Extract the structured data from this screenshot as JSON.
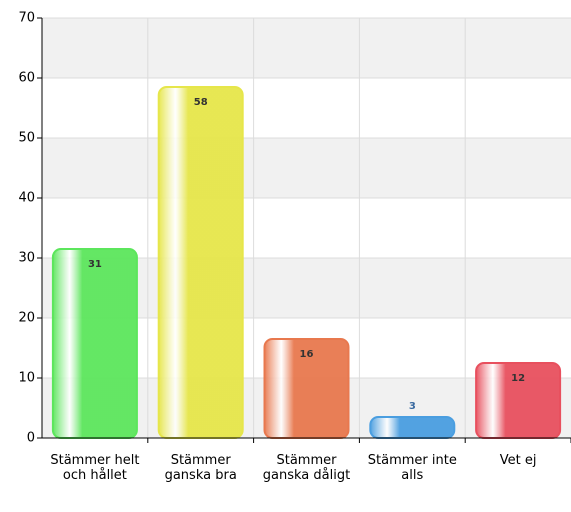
{
  "chart_data": {
    "type": "bar",
    "categories": [
      "Stämmer helt och hållet",
      "Stämmer ganska bra",
      "Stämmer ganska dåligt",
      "Stämmer inte alls",
      "Vet ej"
    ],
    "values": [
      31,
      58,
      16,
      3,
      12
    ],
    "colors": [
      "#5ce65c",
      "#e6e64a",
      "#e8784e",
      "#4a9ee0",
      "#e8505e"
    ],
    "ylim": [
      0,
      70
    ],
    "yticks": [
      0,
      10,
      20,
      30,
      40,
      50,
      60,
      70
    ],
    "grid": true
  }
}
